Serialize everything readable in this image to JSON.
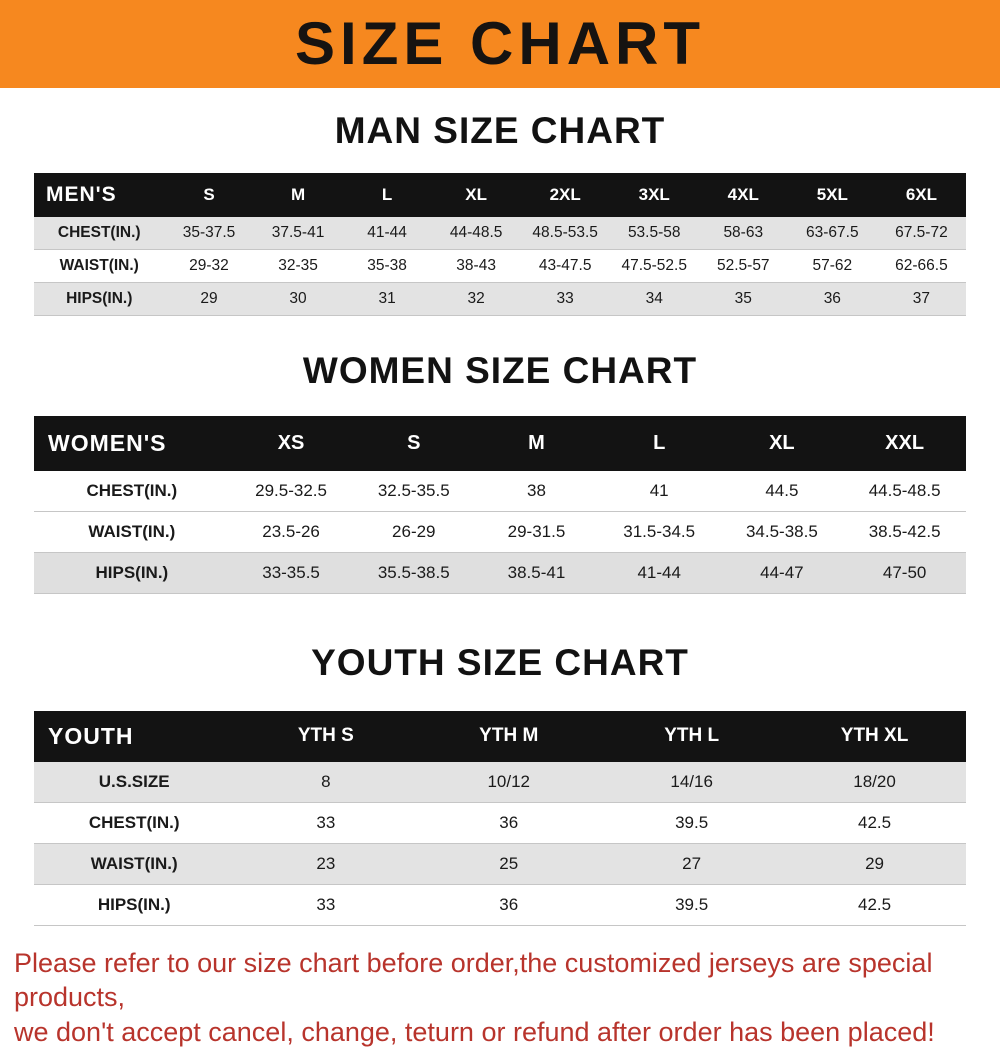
{
  "banner": {
    "title": "SIZE CHART",
    "bg_color": "#F6881F",
    "text_color": "#161311"
  },
  "chart_data": [
    {
      "type": "table",
      "title": "MAN SIZE CHART",
      "corner_label": "MEN'S",
      "columns": [
        "S",
        "M",
        "L",
        "XL",
        "2XL",
        "3XL",
        "4XL",
        "5XL",
        "6XL"
      ],
      "rows": [
        {
          "label": "CHEST(IN.)",
          "values": [
            "35-37.5",
            "37.5-41",
            "41-44",
            "44-48.5",
            "48.5-53.5",
            "53.5-58",
            "58-63",
            "63-67.5",
            "67.5-72"
          ]
        },
        {
          "label": "WAIST(IN.)",
          "values": [
            "29-32",
            "32-35",
            "35-38",
            "38-43",
            "43-47.5",
            "47.5-52.5",
            "52.5-57",
            "57-62",
            "62-66.5"
          ]
        },
        {
          "label": "HIPS(IN.)",
          "values": [
            "29",
            "30",
            "31",
            "32",
            "33",
            "34",
            "35",
            "36",
            "37"
          ]
        }
      ]
    },
    {
      "type": "table",
      "title": "WOMEN SIZE CHART",
      "corner_label": "WOMEN'S",
      "columns": [
        "XS",
        "S",
        "M",
        "L",
        "XL",
        "XXL"
      ],
      "rows": [
        {
          "label": "CHEST(IN.)",
          "values": [
            "29.5-32.5",
            "32.5-35.5",
            "38",
            "41",
            "44.5",
            "44.5-48.5"
          ]
        },
        {
          "label": "WAIST(IN.)",
          "values": [
            "23.5-26",
            "26-29",
            "29-31.5",
            "31.5-34.5",
            "34.5-38.5",
            "38.5-42.5"
          ]
        },
        {
          "label": "HIPS(IN.)",
          "values": [
            "33-35.5",
            "35.5-38.5",
            "38.5-41",
            "41-44",
            "44-47",
            "47-50"
          ]
        }
      ]
    },
    {
      "type": "table",
      "title": "YOUTH SIZE CHART",
      "corner_label": "YOUTH",
      "columns": [
        "YTH S",
        "YTH M",
        "YTH L",
        "YTH XL"
      ],
      "rows": [
        {
          "label": "U.S.SIZE",
          "values": [
            "8",
            "10/12",
            "14/16",
            "18/20"
          ]
        },
        {
          "label": "CHEST(IN.)",
          "values": [
            "33",
            "36",
            "39.5",
            "42.5"
          ]
        },
        {
          "label": "WAIST(IN.)",
          "values": [
            "23",
            "25",
            "27",
            "29"
          ]
        },
        {
          "label": "HIPS(IN.)",
          "values": [
            "33",
            "36",
            "39.5",
            "42.5"
          ]
        }
      ]
    }
  ],
  "footer": {
    "text_color": "#B8342C",
    "lines": [
      "Please refer to our size chart before order,the customized jerseys are special products,",
      "we don't accept cancel, change, teturn or refund after order has been placed!"
    ]
  }
}
